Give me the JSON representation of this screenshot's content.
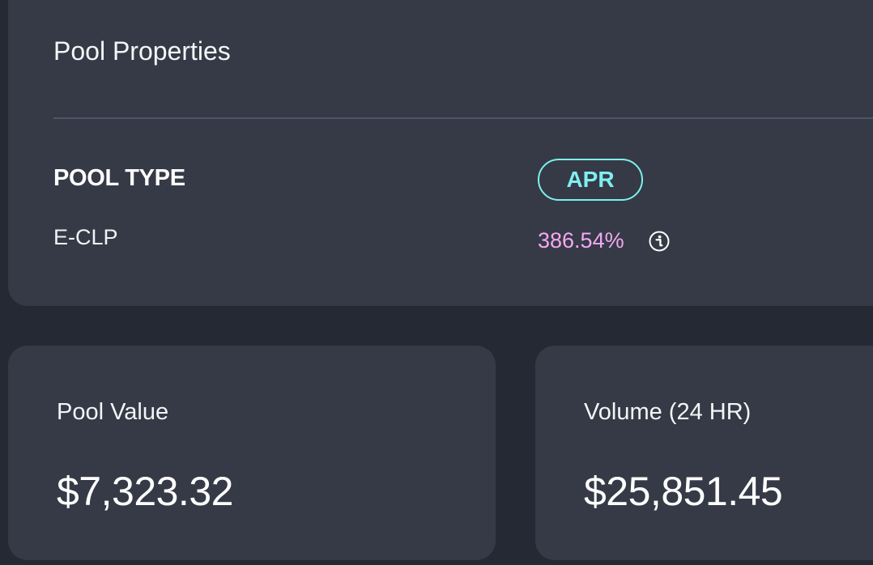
{
  "pool_properties": {
    "title": "Pool Properties",
    "pool_type_label": "POOL TYPE",
    "pool_type_value": "E-CLP",
    "apr_label": "APR",
    "apr_value": "386.54%",
    "apr_info_icon": "info-icon"
  },
  "stats": {
    "pool_value_label": "Pool Value",
    "pool_value": "$7,323.32",
    "volume_label": "Volume (24 HR)",
    "volume_value": "$25,851.45"
  },
  "colors": {
    "background": "#252933",
    "card": "#353a46",
    "apr_accent": "#80eef0",
    "apr_value": "#f4a8f2"
  }
}
